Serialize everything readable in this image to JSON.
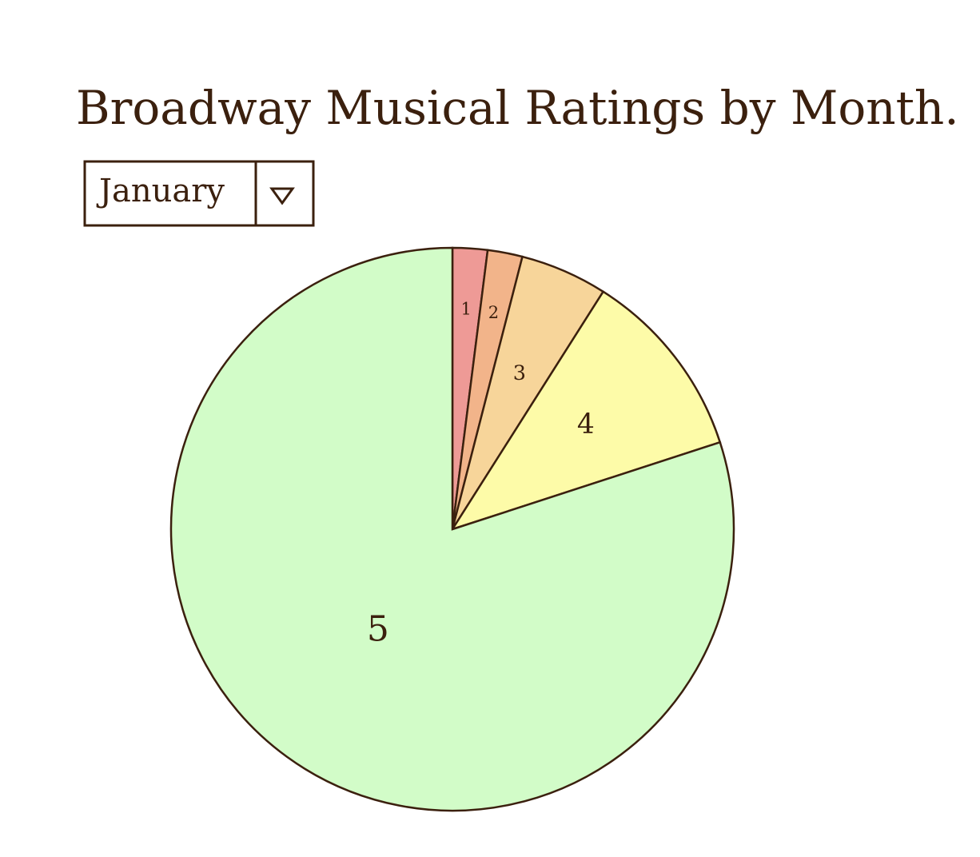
{
  "chart_data": {
    "type": "pie",
    "title": "Broadway Musical Ratings by Month.",
    "categories": [
      "1",
      "2",
      "3",
      "4",
      "5"
    ],
    "values": [
      2,
      2,
      5,
      11,
      80
    ],
    "colors": [
      "#ee9a96",
      "#f2b48a",
      "#f7d59a",
      "#fdfba8",
      "#d2fcc8"
    ]
  },
  "month_selector": {
    "value": "January"
  }
}
